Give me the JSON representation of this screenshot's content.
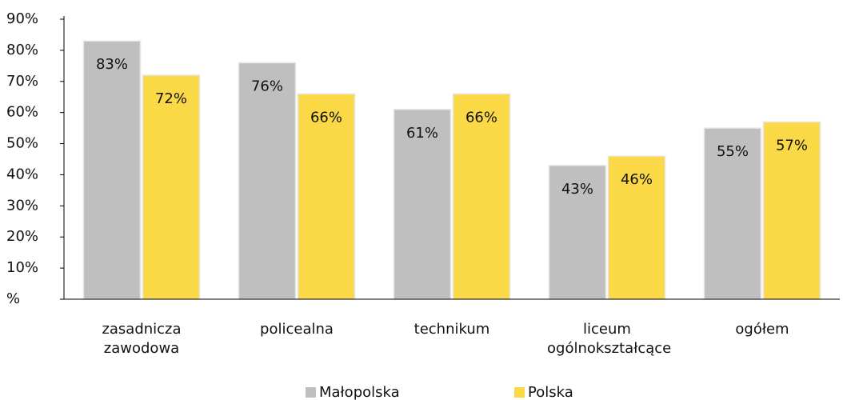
{
  "chart_data": {
    "type": "bar",
    "categories": [
      "zasadnicza zawodowa",
      "policealna",
      "technikum",
      "liceum ogólnokształcące",
      "ogółem"
    ],
    "series": [
      {
        "name": "Małopolska",
        "color": "#bfbfbf",
        "values": [
          83,
          76,
          61,
          43,
          55
        ],
        "value_labels": [
          "83%",
          "76%",
          "61%",
          "43%",
          "55%"
        ]
      },
      {
        "name": "Polska",
        "color": "#fbd946",
        "values": [
          72,
          66,
          66,
          46,
          57
        ],
        "value_labels": [
          "72%",
          "66%",
          "66%",
          "46%",
          "57%"
        ]
      }
    ],
    "ylim": [
      0,
      90
    ],
    "yticks": [
      {
        "value": 0,
        "label": "%"
      },
      {
        "value": 10,
        "label": "10%"
      },
      {
        "value": 20,
        "label": "20%"
      },
      {
        "value": 30,
        "label": "30%"
      },
      {
        "value": 40,
        "label": "40%"
      },
      {
        "value": 50,
        "label": "50%"
      },
      {
        "value": 60,
        "label": "60%"
      },
      {
        "value": 70,
        "label": "70%"
      },
      {
        "value": 80,
        "label": "80%"
      },
      {
        "value": 90,
        "label": "90%"
      }
    ],
    "grid": false,
    "legend": "bottom"
  }
}
